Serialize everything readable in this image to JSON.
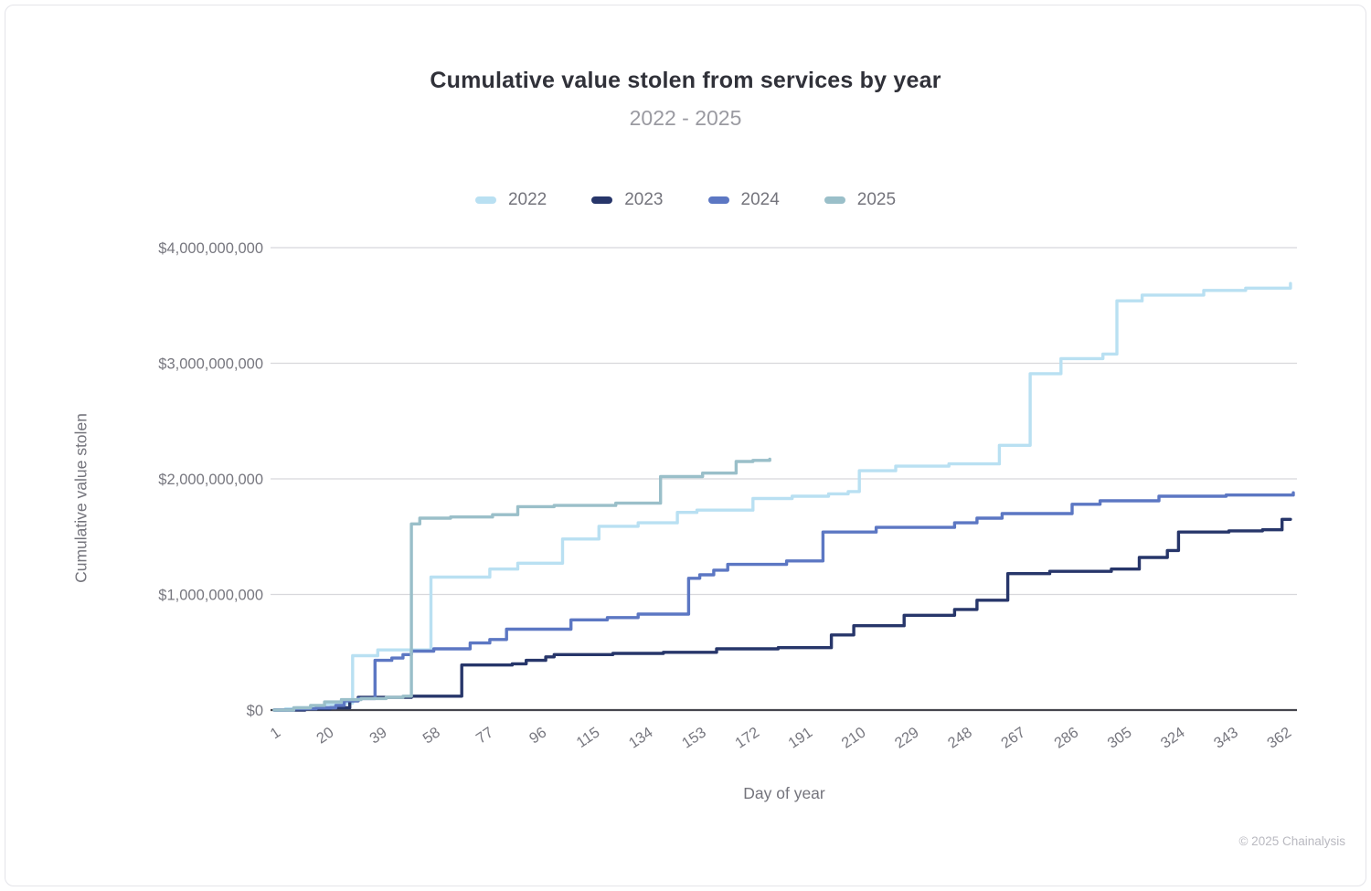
{
  "header": {
    "title": "Cumulative value stolen from services by year",
    "subtitle": "2022 - 2025"
  },
  "footer": {
    "copyright": "© 2025 Chainalysis"
  },
  "chart_data": {
    "type": "line",
    "step": true,
    "title": "Cumulative value stolen from services by year",
    "subtitle": "2022 - 2025",
    "xlabel": "Day of year",
    "ylabel": "Cumulative value stolen",
    "unit": "USD billions",
    "xlim": [
      1,
      365
    ],
    "ylim_billions": [
      0,
      4
    ],
    "grid": "horizontal",
    "legend_position": "top",
    "x_ticks": [
      1,
      20,
      39,
      58,
      77,
      96,
      115,
      134,
      153,
      172,
      191,
      210,
      229,
      248,
      267,
      286,
      305,
      324,
      343,
      362
    ],
    "y_ticks": [
      {
        "value": 0,
        "label": "$0"
      },
      {
        "value": 1,
        "label": "$1,000,000,000"
      },
      {
        "value": 2,
        "label": "$2,000,000,000"
      },
      {
        "value": 3,
        "label": "$3,000,000,000"
      },
      {
        "value": 4,
        "label": "$4,000,000,000"
      }
    ],
    "series": [
      {
        "name": "2022",
        "color": "#B9E0F2",
        "points": [
          [
            1,
            0
          ],
          [
            5,
            0.01
          ],
          [
            9,
            0.02
          ],
          [
            14,
            0.03
          ],
          [
            19,
            0.05
          ],
          [
            24,
            0.06
          ],
          [
            29,
            0.47
          ],
          [
            38,
            0.52
          ],
          [
            57,
            1.15
          ],
          [
            78,
            1.22
          ],
          [
            88,
            1.27
          ],
          [
            104,
            1.48
          ],
          [
            117,
            1.59
          ],
          [
            131,
            1.62
          ],
          [
            145,
            1.71
          ],
          [
            152,
            1.73
          ],
          [
            172,
            1.83
          ],
          [
            186,
            1.85
          ],
          [
            199,
            1.87
          ],
          [
            206,
            1.89
          ],
          [
            210,
            2.07
          ],
          [
            223,
            2.11
          ],
          [
            242,
            2.13
          ],
          [
            260,
            2.29
          ],
          [
            271,
            2.91
          ],
          [
            282,
            3.04
          ],
          [
            297,
            3.08
          ],
          [
            302,
            3.54
          ],
          [
            311,
            3.59
          ],
          [
            333,
            3.63
          ],
          [
            348,
            3.65
          ],
          [
            364,
            3.69
          ]
        ]
      },
      {
        "name": "2023",
        "color": "#27366A",
        "points": [
          [
            1,
            0
          ],
          [
            12,
            0.01
          ],
          [
            21,
            0.02
          ],
          [
            28,
            0.08
          ],
          [
            31,
            0.11
          ],
          [
            50,
            0.12
          ],
          [
            68,
            0.39
          ],
          [
            86,
            0.4
          ],
          [
            91,
            0.43
          ],
          [
            98,
            0.46
          ],
          [
            101,
            0.48
          ],
          [
            122,
            0.49
          ],
          [
            140,
            0.5
          ],
          [
            159,
            0.53
          ],
          [
            181,
            0.54
          ],
          [
            200,
            0.65
          ],
          [
            208,
            0.73
          ],
          [
            226,
            0.82
          ],
          [
            244,
            0.87
          ],
          [
            252,
            0.95
          ],
          [
            263,
            1.18
          ],
          [
            278,
            1.2
          ],
          [
            300,
            1.22
          ],
          [
            310,
            1.32
          ],
          [
            320,
            1.38
          ],
          [
            324,
            1.54
          ],
          [
            342,
            1.55
          ],
          [
            354,
            1.56
          ],
          [
            361,
            1.65
          ],
          [
            364,
            1.65
          ]
        ]
      },
      {
        "name": "2024",
        "color": "#5C77C3",
        "points": [
          [
            1,
            0
          ],
          [
            8,
            0.01
          ],
          [
            16,
            0.02
          ],
          [
            23,
            0.04
          ],
          [
            26,
            0.08
          ],
          [
            31,
            0.1
          ],
          [
            37,
            0.43
          ],
          [
            43,
            0.45
          ],
          [
            47,
            0.48
          ],
          [
            50,
            0.51
          ],
          [
            58,
            0.53
          ],
          [
            71,
            0.58
          ],
          [
            78,
            0.61
          ],
          [
            84,
            0.7
          ],
          [
            107,
            0.78
          ],
          [
            120,
            0.8
          ],
          [
            131,
            0.83
          ],
          [
            149,
            1.14
          ],
          [
            153,
            1.17
          ],
          [
            158,
            1.21
          ],
          [
            163,
            1.26
          ],
          [
            184,
            1.29
          ],
          [
            197,
            1.54
          ],
          [
            216,
            1.58
          ],
          [
            244,
            1.62
          ],
          [
            252,
            1.66
          ],
          [
            261,
            1.7
          ],
          [
            286,
            1.78
          ],
          [
            296,
            1.81
          ],
          [
            317,
            1.85
          ],
          [
            341,
            1.86
          ],
          [
            365,
            1.88
          ]
        ]
      },
      {
        "name": "2025",
        "color": "#9ABFC9",
        "points": [
          [
            1,
            0
          ],
          [
            8,
            0.02
          ],
          [
            14,
            0.04
          ],
          [
            19,
            0.07
          ],
          [
            25,
            0.09
          ],
          [
            32,
            0.1
          ],
          [
            41,
            0.11
          ],
          [
            47,
            0.12
          ],
          [
            50,
            1.61
          ],
          [
            53,
            1.66
          ],
          [
            64,
            1.67
          ],
          [
            79,
            1.69
          ],
          [
            88,
            1.76
          ],
          [
            101,
            1.77
          ],
          [
            123,
            1.79
          ],
          [
            139,
            2.02
          ],
          [
            154,
            2.05
          ],
          [
            166,
            2.15
          ],
          [
            172,
            2.16
          ],
          [
            178,
            2.17
          ]
        ]
      }
    ]
  }
}
